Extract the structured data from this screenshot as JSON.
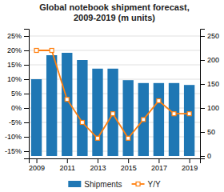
{
  "chart_data": {
    "type": "bar",
    "title": "Global notebook shipment forecast,\n2009-2019 (m units)",
    "x": [
      2009,
      2010,
      2011,
      2012,
      2013,
      2014,
      2015,
      2016,
      2017,
      2018,
      2019
    ],
    "xlim": [
      2008.5,
      2019.7
    ],
    "xticks": [
      2009,
      2011,
      2013,
      2015,
      2017,
      2019
    ],
    "ylim": [
      -0.175,
      0.275
    ],
    "yticks": [
      {
        "value": -0.15,
        "label": "-15%"
      },
      {
        "value": -0.1,
        "label": "-10%"
      },
      {
        "value": -0.05,
        "label": "-5%"
      },
      {
        "value": 0.0,
        "label": "0%"
      },
      {
        "value": 0.05,
        "label": "5%"
      },
      {
        "value": 0.1,
        "label": "10%"
      },
      {
        "value": 0.15,
        "label": "15%"
      },
      {
        "value": 0.2,
        "label": "20%"
      },
      {
        "value": 0.25,
        "label": "25%"
      }
    ],
    "y2lim": [
      -5,
      265
    ],
    "y2ticks": [
      0,
      50,
      100,
      150,
      200,
      250
    ],
    "grid": true,
    "legend": "bottom",
    "series": [
      {
        "name": "Shipments",
        "axis": "y2",
        "values": [
          160,
          210,
          215,
          200,
          182,
          182,
          158,
          152,
          152,
          152,
          148
        ]
      },
      {
        "name": "Y/Y",
        "type": "line",
        "marker": "square",
        "values": [
          0.2,
          0.2,
          0.03,
          -0.05,
          -0.105,
          -0.02,
          -0.105,
          -0.04,
          0.025,
          -0.02,
          -0.02
        ]
      }
    ]
  }
}
